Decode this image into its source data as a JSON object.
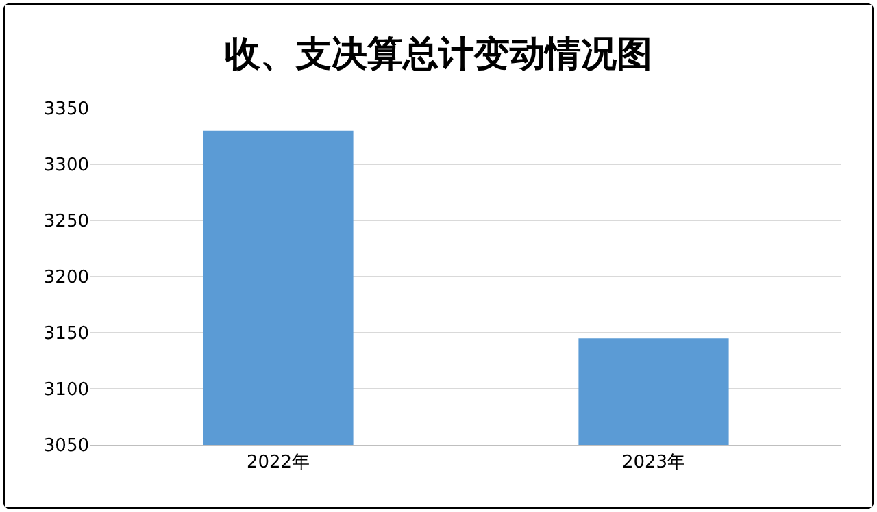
{
  "chart_data": {
    "type": "bar",
    "title": "收、支决算总计变动情况图",
    "categories": [
      "2022年",
      "2023年"
    ],
    "values": [
      3330,
      3145
    ],
    "color": "#5b9bd5",
    "ylim": [
      3050,
      3350
    ],
    "yticks": [
      3050,
      3100,
      3150,
      3200,
      3250,
      3300,
      3350
    ],
    "grid": "y"
  }
}
